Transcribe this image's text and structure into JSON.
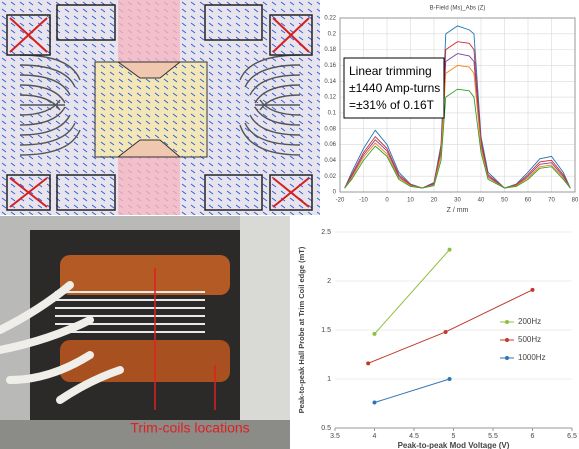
{
  "chart_data": [
    {
      "type": "line",
      "title": "B-Field (Ms)_Abs (Z)",
      "x_label": "Z / mm",
      "annotation": [
        "Linear trimming",
        "±1440 Amp-turns",
        "=±31% of 0.16T"
      ],
      "x": [
        -18,
        -15,
        -10,
        -5,
        0,
        5,
        10,
        15,
        20,
        23,
        25,
        30,
        35,
        37,
        40,
        43,
        50,
        55,
        60,
        65,
        70,
        75,
        78
      ],
      "series": [
        {
          "color": "#1f77b4",
          "values": [
            0.005,
            0.025,
            0.055,
            0.078,
            0.06,
            0.025,
            0.01,
            0.005,
            0.012,
            0.06,
            0.2,
            0.21,
            0.205,
            0.2,
            0.07,
            0.025,
            0.005,
            0.01,
            0.025,
            0.042,
            0.045,
            0.025,
            0.005
          ]
        },
        {
          "color": "#d62728",
          "values": [
            0.005,
            0.022,
            0.05,
            0.07,
            0.055,
            0.022,
            0.009,
            0.005,
            0.011,
            0.055,
            0.18,
            0.19,
            0.188,
            0.18,
            0.065,
            0.022,
            0.005,
            0.009,
            0.022,
            0.038,
            0.04,
            0.022,
            0.005
          ]
        },
        {
          "color": "#7f3f98",
          "values": [
            0.005,
            0.02,
            0.047,
            0.066,
            0.052,
            0.02,
            0.008,
            0.005,
            0.01,
            0.05,
            0.165,
            0.175,
            0.172,
            0.165,
            0.06,
            0.02,
            0.005,
            0.008,
            0.02,
            0.035,
            0.037,
            0.02,
            0.005
          ]
        },
        {
          "color": "#ff7f0e",
          "values": [
            0.005,
            0.018,
            0.044,
            0.062,
            0.048,
            0.018,
            0.008,
            0.005,
            0.009,
            0.047,
            0.15,
            0.16,
            0.158,
            0.15,
            0.056,
            0.018,
            0.005,
            0.008,
            0.018,
            0.032,
            0.034,
            0.018,
            0.005
          ]
        },
        {
          "color": "#2ca02c",
          "values": [
            0.005,
            0.016,
            0.04,
            0.058,
            0.045,
            0.016,
            0.007,
            0.005,
            0.008,
            0.04,
            0.12,
            0.13,
            0.128,
            0.12,
            0.05,
            0.016,
            0.005,
            0.007,
            0.016,
            0.03,
            0.032,
            0.016,
            0.005
          ]
        }
      ],
      "xlim": [
        -20,
        80
      ],
      "xticks": [
        -20,
        -10,
        0,
        10,
        20,
        30,
        40,
        50,
        60,
        70,
        80
      ],
      "ylim": [
        0,
        0.22
      ],
      "yticks": [
        0,
        0.02,
        0.04,
        0.06,
        0.08,
        0.1,
        0.12,
        0.14,
        0.16,
        0.18,
        0.2,
        0.22
      ],
      "grid": true
    },
    {
      "type": "line",
      "x_label": "Peak-to-peak Mod Voltage (V)",
      "y_label": "Peak-to-peak Hall Probe at Trim Coil edge (mT)",
      "series": [
        {
          "name": "200Hz",
          "color": "#8fbf3f",
          "x": [
            4,
            4.95
          ],
          "values": [
            1.46,
            2.32
          ]
        },
        {
          "name": "500Hz",
          "color": "#c0392b",
          "x": [
            3.92,
            4.9,
            6.0
          ],
          "values": [
            1.16,
            1.48,
            1.91
          ]
        },
        {
          "name": "1000Hz",
          "color": "#2e75b6",
          "x": [
            4,
            4.95
          ],
          "values": [
            0.76,
            1
          ]
        }
      ],
      "xlim": [
        3.5,
        6.5
      ],
      "xticks": [
        3.5,
        4,
        4.5,
        5,
        5.5,
        6,
        6.5
      ],
      "ylim": [
        0.5,
        2.5
      ],
      "yticks": [
        0.5,
        1,
        1.5,
        2,
        2.5
      ],
      "grid": true,
      "legend": "right"
    }
  ],
  "photo": {
    "annotation": "Trim-coils locations"
  }
}
